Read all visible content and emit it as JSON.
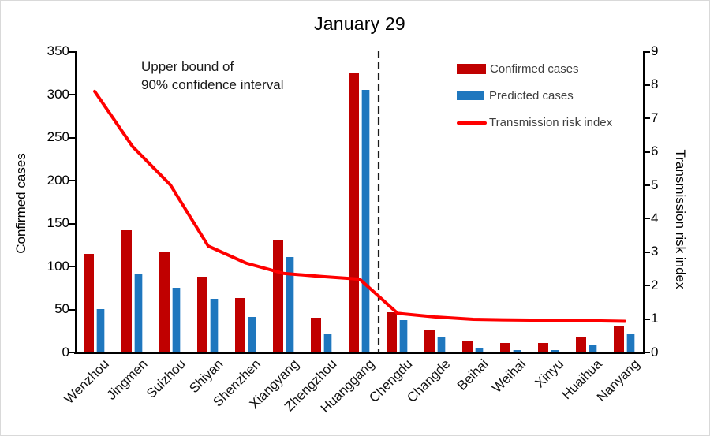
{
  "chart_data": {
    "type": "bar",
    "title": "January 29",
    "categories": [
      "Wenzhou",
      "Jingmen",
      "Suizhou",
      "Shiyan",
      "Shenzhen",
      "Xiangyang",
      "Zhengzhou",
      "Huanggang",
      "Chengdu",
      "Changde",
      "Beihai",
      "Weihai",
      "Xinyu",
      "Huaihua",
      "Nanyang"
    ],
    "series": [
      {
        "name": "Confirmed cases",
        "type": "bar",
        "axis": "left",
        "color": "#c00000",
        "values": [
          114,
          142,
          116,
          88,
          63,
          131,
          40,
          325,
          46,
          26,
          13,
          11,
          11,
          18,
          31
        ]
      },
      {
        "name": "Predicted cases",
        "type": "bar",
        "axis": "left",
        "color": "#1f77be",
        "values": [
          50,
          90,
          75,
          62,
          41,
          111,
          21,
          305,
          37,
          17,
          4,
          2,
          2,
          9,
          22
        ]
      },
      {
        "name": "Transmission risk index",
        "type": "line",
        "axis": "right",
        "color": "#ff0000",
        "values": [
          7.8,
          6.15,
          5.0,
          3.17,
          2.66,
          2.35,
          2.26,
          2.18,
          1.16,
          1.05,
          0.98,
          0.96,
          0.95,
          0.94,
          0.92
        ]
      }
    ],
    "left_axis": {
      "label": "Confirmed cases",
      "min": 0,
      "max": 350,
      "ticks": [
        0,
        50,
        100,
        150,
        200,
        250,
        300,
        350
      ]
    },
    "right_axis": {
      "label": "Transmission risk index",
      "min": 0,
      "max": 9,
      "ticks": [
        0,
        1,
        2,
        3,
        4,
        5,
        6,
        7,
        8,
        9
      ]
    },
    "separator": {
      "after_category": "Huanggang",
      "style": "black dashed vertical line"
    },
    "annotation_lines": [
      "Upper bound of",
      "90% confidence interval"
    ],
    "legend_position": "top-right-inside",
    "grid": false
  }
}
